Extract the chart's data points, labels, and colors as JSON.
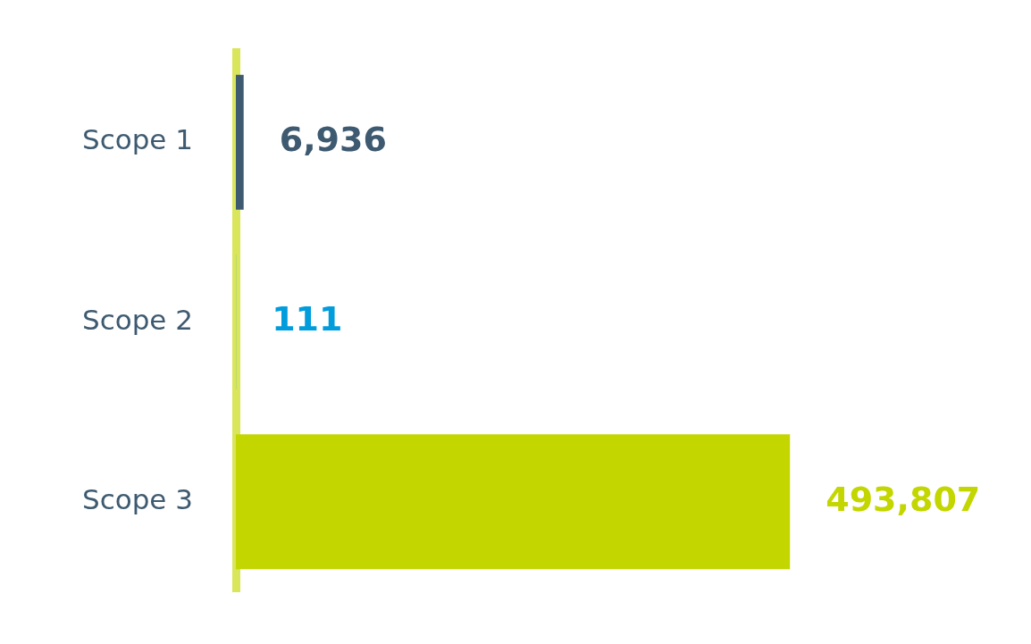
{
  "chart_data": {
    "type": "bar",
    "orientation": "horizontal",
    "categories": [
      "Scope 1",
      "Scope 2",
      "Scope 3"
    ],
    "values": [
      6936,
      111,
      493807
    ],
    "colors": [
      "#3e5a70",
      "#009cdc",
      "#c3d600"
    ],
    "value_labels": [
      "6,936",
      "111",
      "493,807"
    ],
    "legend": false
  }
}
